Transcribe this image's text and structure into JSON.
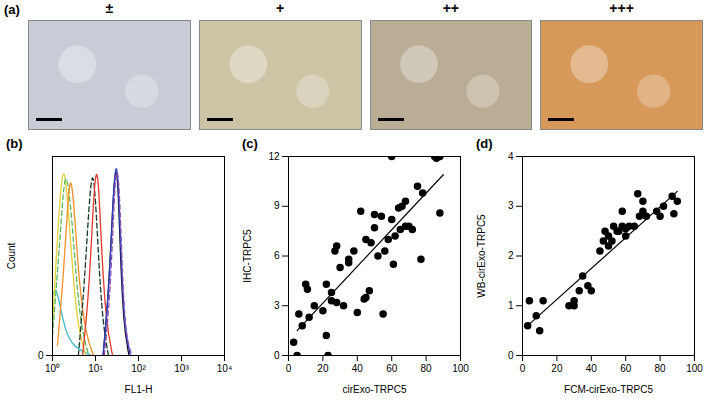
{
  "chart_data": [
    {
      "type": "image_panels",
      "title": "(a)",
      "categories": [
        "±",
        "+",
        "++",
        "+++"
      ],
      "colors": [
        "#c7ccd6",
        "#cdc4a6",
        "#b9ad95",
        "#d6995a"
      ]
    },
    {
      "type": "line",
      "title": "(b)",
      "x_label": "FL1-H",
      "y_label": "Count",
      "log": "x",
      "xlim": [
        1,
        10000
      ],
      "xticks": [
        {
          "value": 1,
          "label": "10⁰"
        },
        {
          "value": 10,
          "label": "10¹"
        },
        {
          "value": 100,
          "label": "10²"
        },
        {
          "value": 1000,
          "label": "10³"
        },
        {
          "value": 10000,
          "label": "10⁴"
        }
      ],
      "ylim": [
        0,
        100
      ],
      "yticks": [
        0
      ],
      "series": [
        {
          "color": "#3bb8c8",
          "line_style": "solid",
          "x": [
            1,
            1.2,
            1.5,
            2,
            3,
            5,
            8
          ],
          "values": [
            30,
            35,
            25,
            12,
            5,
            2,
            0
          ]
        },
        {
          "color": "#e3d03a",
          "line_style": "solid",
          "x": [
            1,
            1.3,
            1.6,
            1.9,
            2.3,
            3,
            4,
            6
          ],
          "values": [
            15,
            60,
            88,
            95,
            75,
            40,
            12,
            0
          ]
        },
        {
          "color": "#5cb85c",
          "line_style": "dashed",
          "x": [
            1,
            1.4,
            1.8,
            2.1,
            2.6,
            3.4,
            4.5,
            7
          ],
          "values": [
            10,
            50,
            85,
            92,
            78,
            45,
            15,
            0
          ]
        },
        {
          "color": "#f0902a",
          "line_style": "solid",
          "x": [
            1.3,
            1.8,
            2.3,
            2.7,
            3.3,
            4.2,
            6,
            9
          ],
          "values": [
            5,
            40,
            80,
            92,
            70,
            35,
            10,
            0
          ]
        },
        {
          "color": "#1b3b2a",
          "line_style": "dashed",
          "x": [
            4,
            5.5,
            7,
            8.5,
            10,
            12,
            15,
            20
          ],
          "values": [
            0,
            35,
            75,
            95,
            80,
            45,
            15,
            0
          ]
        },
        {
          "color": "#e03a2e",
          "line_style": "solid",
          "x": [
            5,
            7,
            9,
            10.5,
            12,
            14,
            18,
            25
          ],
          "values": [
            0,
            30,
            80,
            95,
            85,
            50,
            15,
            0
          ]
        },
        {
          "color": "#111111",
          "line_style": "solid",
          "x": [
            15,
            20,
            25,
            29,
            33,
            38,
            45,
            60
          ],
          "values": [
            0,
            30,
            75,
            95,
            90,
            50,
            15,
            0
          ]
        },
        {
          "color": "#2e3fc4",
          "line_style": "solid",
          "x": [
            15,
            21,
            26,
            30,
            34,
            40,
            48,
            65
          ],
          "values": [
            0,
            35,
            82,
            98,
            88,
            45,
            12,
            0
          ]
        },
        {
          "color": "#8a4fb0",
          "line_style": "dashed",
          "x": [
            16,
            22,
            27,
            31,
            36,
            42,
            50,
            70
          ],
          "values": [
            0,
            30,
            78,
            97,
            85,
            42,
            10,
            0
          ]
        }
      ]
    },
    {
      "type": "scatter",
      "title": "(c)",
      "x_label": "cirExo-TRPC5",
      "y_label": "IHC-TRPC5",
      "xlim": [
        0,
        100
      ],
      "xticks": [
        0,
        20,
        40,
        60,
        80,
        100
      ],
      "ylim": [
        0,
        12
      ],
      "yticks": [
        0,
        3,
        6,
        9,
        12
      ],
      "color": "#000000",
      "x": [
        3,
        5,
        6,
        8,
        10,
        11,
        12,
        15,
        20,
        22,
        22,
        23,
        25,
        25,
        27,
        28,
        28,
        30,
        32,
        35,
        35,
        38,
        40,
        42,
        44,
        45,
        45,
        47,
        48,
        50,
        50,
        52,
        54,
        55,
        56,
        58,
        60,
        60,
        61,
        62,
        64,
        65,
        66,
        68,
        68,
        70,
        72,
        75,
        77,
        78,
        85,
        86,
        88,
        88
      ],
      "values": [
        0.8,
        0,
        2.5,
        1.8,
        4.3,
        4,
        2.3,
        3,
        2.7,
        4.3,
        1.2,
        0,
        3.3,
        3.8,
        6.3,
        6.6,
        3.2,
        5.3,
        3,
        5.8,
        5.6,
        6.3,
        2.6,
        8.7,
        3.4,
        3.5,
        7,
        3.9,
        6.8,
        7.7,
        8.5,
        6,
        8.4,
        2.5,
        6.3,
        7,
        12,
        8.2,
        5.5,
        7.2,
        8.9,
        7.6,
        9,
        9.3,
        7.8,
        7.8,
        7.6,
        10.2,
        5.8,
        9.8,
        12,
        11.9,
        12,
        8.6
      ],
      "trend": {
        "x": [
          5,
          90
        ],
        "values": [
          1.5,
          10.9
        ]
      }
    },
    {
      "type": "scatter",
      "title": "(d)",
      "x_label": "FCM-cirExo-TRPC5",
      "y_label": "WB-cirExo-TRPC5",
      "xlim": [
        0,
        100
      ],
      "xticks": [
        0,
        20,
        40,
        60,
        80,
        100
      ],
      "ylim": [
        0,
        4
      ],
      "yticks": [
        0,
        1,
        2,
        3,
        4
      ],
      "color": "#000000",
      "x": [
        3,
        4,
        8,
        10,
        12,
        27,
        30,
        30,
        33,
        35,
        38,
        40,
        45,
        47,
        48,
        50,
        50,
        52,
        53,
        55,
        56,
        58,
        58,
        60,
        60,
        62,
        65,
        67,
        68,
        70,
        70,
        72,
        78,
        80,
        82,
        87,
        88,
        90
      ],
      "values": [
        0.6,
        1.1,
        0.8,
        0.5,
        1.1,
        1,
        1.1,
        1,
        1.3,
        1.6,
        1.4,
        1.3,
        2.1,
        2.3,
        2.5,
        2.4,
        2.2,
        2.3,
        2.6,
        2.5,
        2.5,
        2.9,
        2.6,
        2.55,
        2.4,
        2.6,
        2.6,
        3.25,
        2.8,
        2.9,
        3.1,
        2.8,
        2.9,
        2.8,
        3,
        3.2,
        2.85,
        3.1
      ],
      "trend": {
        "x": [
          3,
          90
        ],
        "values": [
          0.6,
          3.3
        ]
      }
    }
  ]
}
